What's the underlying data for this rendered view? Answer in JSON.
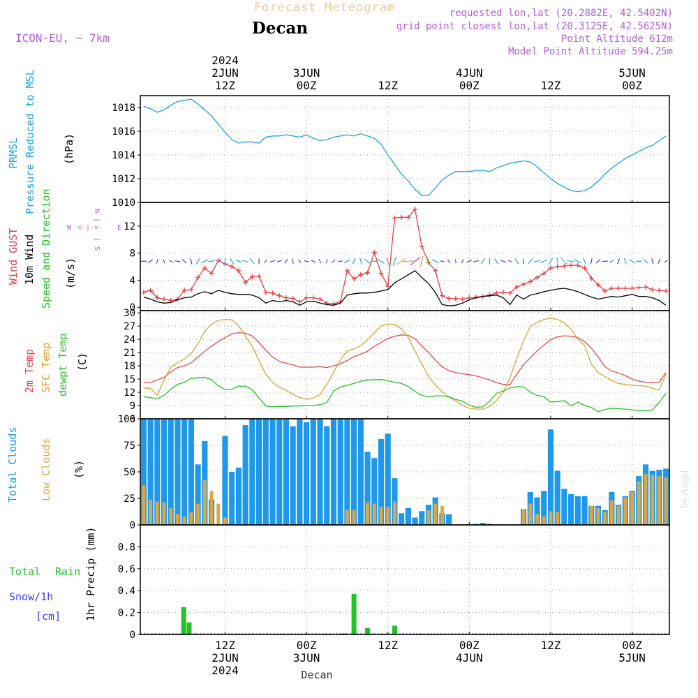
{
  "header": {
    "title": "Forecast Meteogram",
    "location": "Decan",
    "model": "ICON-EU, ~ 7km",
    "requested": "requested lon,lat (20.2882E, 42.5402N)",
    "grid_point": "grid point closest lon,lat (20.3125E, 42.5625N)",
    "point_altitude": "Point Altitude 612m",
    "model_altitude": "Model Point Altitude 594.25m",
    "watermark": "by Angel",
    "footer_location": "Decan"
  },
  "time_axis": {
    "top_ticks": [
      {
        "t": 12,
        "lines": [
          "2024",
          "2JUN",
          "12Z"
        ]
      },
      {
        "t": 24,
        "lines": [
          "3JUN",
          "00Z"
        ]
      },
      {
        "t": 36,
        "lines": [
          "12Z"
        ]
      },
      {
        "t": 48,
        "lines": [
          "4JUN",
          "00Z"
        ]
      },
      {
        "t": 60,
        "lines": [
          "12Z"
        ]
      },
      {
        "t": 72,
        "lines": [
          "5JUN",
          "00Z"
        ]
      }
    ],
    "bottom_ticks": [
      {
        "t": 12,
        "lines": [
          "12Z",
          "2JUN",
          "2024"
        ]
      },
      {
        "t": 24,
        "lines": [
          "00Z",
          "3JUN"
        ]
      },
      {
        "t": 36,
        "lines": [
          "12Z"
        ]
      },
      {
        "t": 48,
        "lines": [
          "00Z",
          "4JUN"
        ]
      },
      {
        "t": 60,
        "lines": [
          "12Z"
        ]
      },
      {
        "t": 72,
        "lines": [
          "00Z",
          "5JUN"
        ]
      }
    ]
  },
  "panel_labels": {
    "p1": {
      "a": "PRMSL",
      "b": "Pressure Reduced to MSL",
      "unit": "(hPa)"
    },
    "p2": {
      "a": "Wind GUST",
      "b": "10m Wind",
      "c": "Speed and Direction",
      "unit": "(m/s)",
      "compass_n": "N",
      "compass_s": "S",
      "compass_w": "W",
      "compass_e": "E"
    },
    "p3": {
      "a": "2m Temp",
      "b": "SFC Temp",
      "c": "dewpt Temp",
      "unit": "(C)"
    },
    "p4": {
      "a": "Total Clouds",
      "b": "Low Clouds",
      "unit": "(%)"
    },
    "p5": {
      "a": "Total",
      "b": "Rain",
      "c": "Snow/1h",
      "d": "[cm]",
      "unit": "1hr Precip (mm)"
    }
  },
  "colors": {
    "pressure": "#1ea0e6",
    "gust": "#ec3c3c",
    "wind": "#000000",
    "t2m": "#e84a4a",
    "tsfc": "#e0a030",
    "dewpt": "#22c322",
    "cloud_total": "#1e98e8",
    "cloud_low": "#d8a848",
    "rain": "#22c322",
    "snow": "#3c3cf0",
    "title": "#f0c890",
    "meta": "#b060d8"
  },
  "chart_data": [
    {
      "type": "line",
      "name": "PRMSL",
      "ylim": [
        1010,
        1019
      ],
      "yticks": [
        1010,
        1012,
        1014,
        1016,
        1018
      ],
      "x": [
        0,
        1,
        2,
        3,
        4,
        5,
        6,
        7,
        8,
        9,
        10,
        11,
        12,
        13,
        14,
        15,
        16,
        17,
        18,
        19,
        20,
        21,
        22,
        23,
        24,
        25,
        26,
        27,
        28,
        29,
        30,
        31,
        32,
        33,
        34,
        35,
        36,
        37,
        38,
        39,
        40,
        41,
        42,
        43,
        44,
        45,
        46,
        47,
        48,
        49,
        50,
        51,
        52,
        53,
        54,
        55,
        56,
        57,
        58,
        59,
        60,
        61,
        62,
        63,
        64,
        65,
        66,
        67,
        68,
        69,
        70,
        71,
        72,
        73,
        74,
        75,
        76,
        77
      ],
      "series": [
        {
          "values": [
            1018.1,
            1017.9,
            1017.6,
            1017.8,
            1018.2,
            1018.5,
            1018.6,
            1018.7,
            1018.3,
            1017.8,
            1017.3,
            1016.6,
            1015.9,
            1015.3,
            1015.0,
            1015.1,
            1015.1,
            1015.0,
            1015.5,
            1015.6,
            1015.6,
            1015.7,
            1015.6,
            1015.5,
            1015.7,
            1015.4,
            1015.2,
            1015.3,
            1015.5,
            1015.6,
            1015.7,
            1015.6,
            1015.8,
            1015.6,
            1015.4,
            1014.9,
            1014.0,
            1013.2,
            1012.4,
            1011.8,
            1011.1,
            1010.6,
            1010.6,
            1011.2,
            1011.9,
            1012.3,
            1012.6,
            1012.6,
            1012.6,
            1012.7,
            1012.7,
            1012.6,
            1012.9,
            1013.1,
            1013.3,
            1013.4,
            1013.5,
            1013.4,
            1013.0,
            1012.5,
            1012.0,
            1011.6,
            1011.3,
            1011.0,
            1010.9,
            1011.0,
            1011.3,
            1011.8,
            1012.4,
            1012.9,
            1013.3,
            1013.7,
            1014.0,
            1014.3,
            1014.6,
            1014.8,
            1015.2,
            1015.6
          ]
        }
      ]
    },
    {
      "type": "line",
      "name": "Wind",
      "ylim": [
        -0.5,
        15.5
      ],
      "yticks": [
        0,
        4,
        8,
        12
      ],
      "x": [
        0,
        1,
        2,
        3,
        4,
        5,
        6,
        7,
        8,
        9,
        10,
        11,
        12,
        13,
        14,
        15,
        16,
        17,
        18,
        19,
        20,
        21,
        22,
        23,
        24,
        25,
        26,
        27,
        28,
        29,
        30,
        31,
        32,
        33,
        34,
        35,
        36,
        37,
        38,
        39,
        40,
        41,
        42,
        43,
        44,
        45,
        46,
        47,
        48,
        49,
        50,
        51,
        52,
        53,
        54,
        55,
        56,
        57,
        58,
        59,
        60,
        61,
        62,
        63,
        64,
        65,
        66,
        67,
        68,
        69,
        70,
        71,
        72,
        73,
        74,
        75,
        76,
        77
      ],
      "series": [
        {
          "key": "gust",
          "values": [
            2.2,
            2.5,
            1.4,
            1.2,
            1.0,
            1.2,
            2.5,
            2.6,
            4.4,
            5.8,
            5.0,
            6.9,
            6.4,
            6.0,
            5.4,
            3.7,
            4.5,
            4.6,
            2.2,
            2.1,
            1.7,
            1.4,
            1.3,
            0.8,
            1.4,
            1.4,
            1.2,
            0.6,
            0.5,
            0.8,
            5.4,
            4.2,
            4.8,
            5.1,
            8.1,
            5.0,
            3.1,
            13.2,
            13.3,
            13.3,
            14.5,
            9.0,
            6.6,
            5.4,
            1.7,
            1.3,
            1.3,
            1.2,
            1.4,
            1.5,
            1.6,
            1.8,
            2.1,
            2.2,
            2.1,
            3.0,
            3.4,
            3.8,
            4.4,
            5.0,
            5.8,
            6.0,
            6.1,
            6.2,
            6.2,
            5.8,
            4.3,
            3.3,
            2.4,
            2.8,
            2.8,
            2.8,
            2.8,
            2.9,
            3.0,
            2.6,
            2.5,
            2.4
          ]
        },
        {
          "key": "wind",
          "values": [
            1.5,
            1.2,
            0.8,
            0.6,
            0.7,
            1.1,
            1.4,
            1.5,
            2.0,
            2.3,
            2.0,
            2.5,
            2.2,
            2.0,
            1.9,
            1.9,
            1.8,
            1.4,
            0.6,
            1.0,
            0.8,
            1.0,
            0.8,
            0.3,
            0.8,
            0.9,
            0.6,
            0.4,
            0.3,
            0.6,
            1.8,
            2.0,
            2.1,
            2.1,
            2.2,
            2.4,
            2.6,
            3.6,
            4.2,
            4.8,
            5.4,
            4.4,
            3.5,
            2.2,
            0.4,
            0.2,
            0.3,
            0.6,
            1.1,
            1.4,
            1.6,
            1.7,
            1.8,
            1.4,
            0.4,
            1.8,
            1.2,
            1.8,
            2.0,
            2.3,
            2.5,
            2.7,
            2.8,
            2.6,
            2.3,
            1.9,
            1.5,
            1.2,
            1.4,
            1.6,
            1.5,
            1.7,
            1.9,
            1.6,
            1.6,
            1.4,
            1.0,
            0.3
          ]
        }
      ]
    },
    {
      "type": "line",
      "name": "Temperature",
      "ylim": [
        6,
        30.5
      ],
      "yticks": [
        6,
        9,
        12,
        15,
        18,
        21,
        24,
        27,
        30
      ],
      "x": [
        0,
        1,
        2,
        3,
        4,
        5,
        6,
        7,
        8,
        9,
        10,
        11,
        12,
        13,
        14,
        15,
        16,
        17,
        18,
        19,
        20,
        21,
        22,
        23,
        24,
        25,
        26,
        27,
        28,
        29,
        30,
        31,
        32,
        33,
        34,
        35,
        36,
        37,
        38,
        39,
        40,
        41,
        42,
        43,
        44,
        45,
        46,
        47,
        48,
        49,
        50,
        51,
        52,
        53,
        54,
        55,
        56,
        57,
        58,
        59,
        60,
        61,
        62,
        63,
        64,
        65,
        66,
        67,
        68,
        69,
        70,
        71,
        72,
        73,
        74,
        75,
        76,
        77
      ],
      "series": [
        {
          "key": "t2m",
          "values": [
            14.2,
            14.2,
            14.8,
            15.4,
            16.6,
            17.6,
            18.0,
            18.7,
            20.0,
            21.3,
            22.4,
            23.5,
            24.4,
            25.2,
            25.5,
            25.4,
            24.8,
            23.3,
            21.5,
            20.0,
            19.0,
            18.6,
            18.2,
            17.7,
            17.7,
            17.7,
            17.8,
            17.6,
            18.0,
            18.5,
            19.2,
            20.1,
            20.6,
            21.3,
            22.4,
            23.3,
            24.2,
            24.7,
            25.0,
            24.9,
            24.1,
            22.5,
            21.0,
            19.3,
            17.8,
            16.9,
            16.5,
            16.2,
            16.0,
            15.7,
            15.3,
            14.8,
            14.2,
            13.8,
            13.8,
            16.1,
            18.3,
            19.8,
            21.4,
            22.7,
            23.9,
            24.6,
            24.8,
            24.7,
            24.4,
            23.5,
            22.0,
            20.0,
            17.8,
            16.8,
            16.4,
            15.8,
            15.0,
            14.5,
            14.3,
            14.2,
            14.3,
            16.5
          ]
        },
        {
          "key": "tsfc",
          "values": [
            13.0,
            12.9,
            11.3,
            14.8,
            17.7,
            18.7,
            19.5,
            20.8,
            23.0,
            25.8,
            27.4,
            28.3,
            28.5,
            28.4,
            27.1,
            24.8,
            22.4,
            19.2,
            16.1,
            14.3,
            13.1,
            12.5,
            11.5,
            10.8,
            10.4,
            10.7,
            11.5,
            13.8,
            16.5,
            19.4,
            21.4,
            21.8,
            22.6,
            23.9,
            25.5,
            27.0,
            27.5,
            27.4,
            26.4,
            24.4,
            21.3,
            18.4,
            15.6,
            13.6,
            12.1,
            10.9,
            10.0,
            9.0,
            8.4,
            8.2,
            8.2,
            8.8,
            10.1,
            12.0,
            15.3,
            19.6,
            23.7,
            26.9,
            27.8,
            28.5,
            28.8,
            28.5,
            27.7,
            26.3,
            24.1,
            22.6,
            18.4,
            16.4,
            15.6,
            14.7,
            14.0,
            13.8,
            13.6,
            13.5,
            13.4,
            12.9,
            12.5,
            16.2
          ]
        },
        {
          "key": "dewpt",
          "values": [
            11.0,
            10.8,
            10.5,
            11.3,
            12.7,
            13.8,
            14.3,
            15.1,
            15.3,
            15.4,
            14.8,
            13.5,
            12.6,
            12.7,
            13.4,
            13.4,
            12.6,
            10.7,
            8.9,
            8.7,
            8.8,
            8.8,
            8.9,
            8.9,
            9.0,
            9.0,
            9.2,
            9.7,
            12.3,
            13.2,
            13.6,
            14.0,
            14.5,
            14.8,
            14.8,
            14.9,
            14.6,
            14.3,
            14.0,
            13.3,
            12.2,
            11.3,
            11.0,
            11.2,
            11.2,
            11.0,
            10.4,
            10.0,
            9.1,
            8.6,
            8.7,
            10.0,
            11.7,
            12.3,
            13.0,
            13.3,
            13.2,
            12.0,
            11.3,
            11.0,
            9.8,
            9.9,
            10.1,
            8.9,
            9.8,
            9.0,
            8.6,
            7.6,
            8.1,
            8.4,
            8.3,
            8.2,
            8.0,
            7.9,
            7.8,
            8.0,
            9.7,
            11.8
          ]
        }
      ]
    },
    {
      "type": "bar",
      "name": "Clouds",
      "ylim": [
        0,
        100
      ],
      "yticks": [
        0,
        25,
        50,
        75,
        100
      ],
      "x": [
        0,
        1,
        2,
        3,
        4,
        5,
        6,
        7,
        8,
        9,
        10,
        11,
        12,
        13,
        14,
        15,
        16,
        17,
        18,
        19,
        20,
        21,
        22,
        23,
        24,
        25,
        26,
        27,
        28,
        29,
        30,
        31,
        32,
        33,
        34,
        35,
        36,
        37,
        38,
        39,
        40,
        41,
        42,
        43,
        44,
        45,
        46,
        47,
        48,
        49,
        50,
        51,
        52,
        53,
        54,
        55,
        56,
        57,
        58,
        59,
        60,
        61,
        62,
        63,
        64,
        65,
        66,
        67,
        68,
        69,
        70,
        71,
        72,
        73,
        74,
        75,
        76,
        77
      ],
      "series": [
        {
          "key": "total",
          "values": [
            100,
            100,
            100,
            100,
            100,
            100,
            100,
            100,
            57,
            79,
            24,
            0,
            84,
            50,
            54,
            94,
            100,
            100,
            100,
            100,
            100,
            100,
            93,
            100,
            97,
            100,
            100,
            93,
            100,
            100,
            100,
            100,
            100,
            69,
            63,
            81,
            86,
            44,
            11,
            16,
            7,
            13,
            19,
            26,
            11,
            10,
            0,
            0,
            0,
            1,
            2,
            1,
            0,
            0,
            0,
            0,
            15,
            31,
            26,
            32,
            90,
            51,
            34,
            29,
            27,
            27,
            18,
            18,
            14,
            31,
            19,
            27,
            32,
            46,
            57,
            51,
            52,
            53
          ]
        },
        {
          "key": "low",
          "values": [
            37,
            24,
            22,
            21,
            16,
            10,
            8,
            12,
            20,
            42,
            32,
            20,
            7,
            0,
            0,
            0,
            0,
            0,
            0,
            0,
            0,
            0,
            0,
            0,
            0,
            0,
            0,
            0,
            0,
            0,
            14,
            14,
            0,
            21,
            20,
            17,
            17,
            22,
            0,
            0,
            0,
            0,
            14,
            20,
            18,
            0,
            0,
            0,
            0,
            0,
            0,
            0,
            0,
            0,
            0,
            0,
            15,
            20,
            10,
            8,
            13,
            12,
            0,
            0,
            0,
            0,
            18,
            16,
            12,
            23,
            18,
            26,
            31,
            41,
            48,
            47,
            46,
            45
          ]
        }
      ]
    },
    {
      "type": "bar",
      "name": "1hr Precip",
      "ylim": [
        0,
        1.0
      ],
      "yticks": [
        0,
        0.2,
        0.4,
        0.6,
        0.8
      ],
      "x": [
        5.9,
        6.7,
        7.6,
        29.5,
        31.0,
        33.0,
        37.0
      ],
      "series": [
        {
          "key": "rain",
          "values": [
            0.25,
            0.11,
            0.01,
            0.01,
            0.37,
            0.06,
            0.08
          ]
        }
      ]
    }
  ]
}
